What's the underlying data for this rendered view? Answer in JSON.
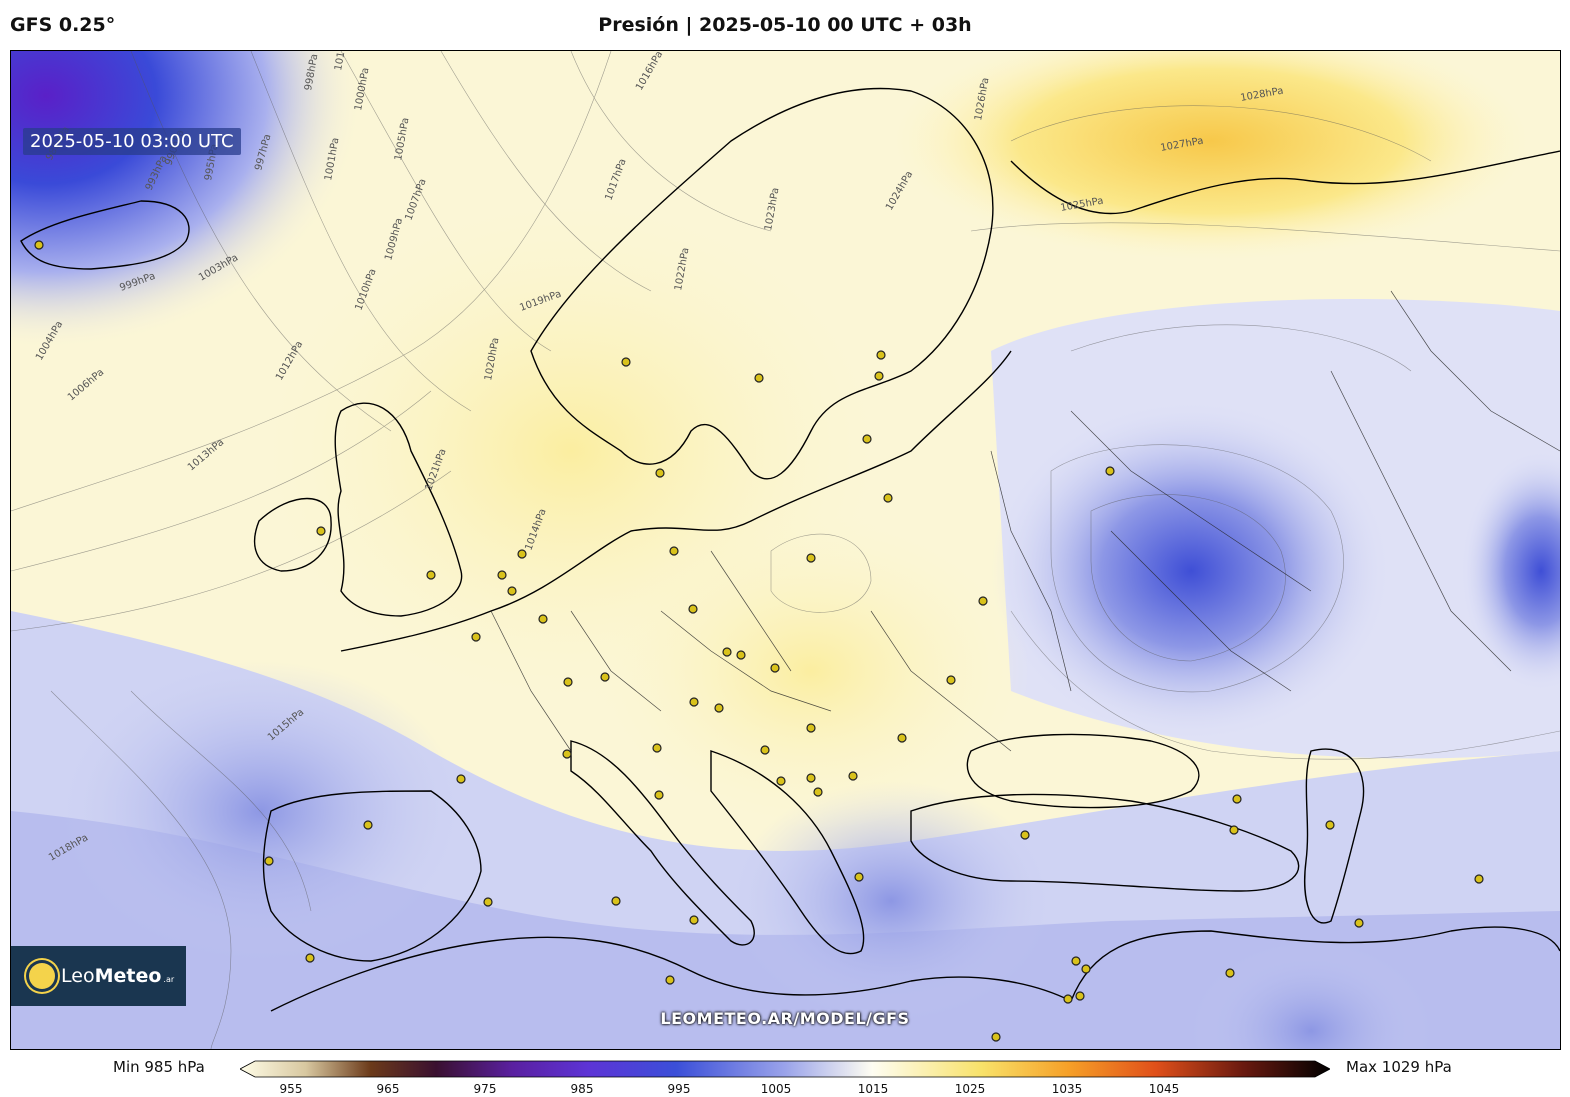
{
  "header": {
    "model": "GFS 0.25°",
    "title": "Presión | 2025-05-10 00 UTC + 03h"
  },
  "map": {
    "timestamp": "2025-05-10 03:00 UTC",
    "watermark": "LEOMETEO.AR/MODEL/GFS",
    "contour_labels": [
      "988hPa",
      "990hPa",
      "993hPa",
      "995hPa",
      "997hPa",
      "998hPa",
      "999hPa",
      "1000hPa",
      "1001hPa",
      "1003hPa",
      "1004hPa",
      "1005hPa",
      "1006hPa",
      "1007hPa",
      "1009hPa",
      "1010hPa",
      "1011hPa",
      "1012hPa",
      "1013hPa",
      "1014hPa",
      "1015hPa",
      "1016hPa",
      "1017hPa",
      "1018hPa",
      "1019hPa",
      "1020hPa",
      "1021hPa",
      "1022hPa",
      "1023hPa",
      "1024hPa",
      "1025hPa",
      "1026hPa",
      "1027hPa",
      "1028hPa"
    ]
  },
  "logo": {
    "brand_light": "Leo",
    "brand_bold": "Meteo",
    "tld": ".ar"
  },
  "colorbar": {
    "min_label": "Min 985 hPa",
    "max_label": "Max 1029 hPa",
    "ticks": [
      "955",
      "965",
      "975",
      "985",
      "995",
      "1005",
      "1015",
      "1025",
      "1035",
      "1045"
    ]
  }
}
